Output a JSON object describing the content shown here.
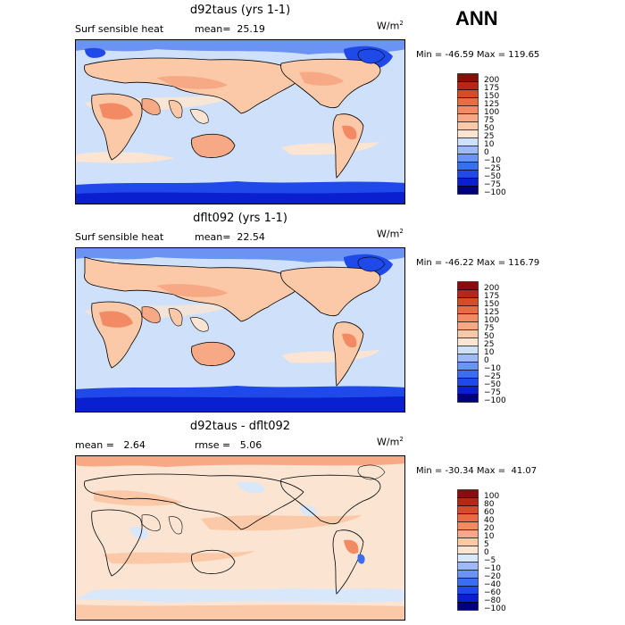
{
  "season": "ANN",
  "colors": {
    "abs_scale": [
      "#00007a",
      "#0a1fd0",
      "#1f49e8",
      "#3a6ef2",
      "#6a93f4",
      "#9cbaf5",
      "#cfe0fa",
      "#fbe5d2",
      "#fbc8a8",
      "#f7a986",
      "#f28b64",
      "#ea6a43",
      "#d94a2b",
      "#b8261a",
      "#8a0d0b"
    ],
    "diff_scale": [
      "#00007a",
      "#0a1fd0",
      "#1f49e8",
      "#3a6ef2",
      "#6a93f4",
      "#9cbaf5",
      "#d9e7fb",
      "#fbe5d2",
      "#fbc8a8",
      "#f7a986",
      "#f28b64",
      "#ea6a43",
      "#d94a2b",
      "#b8261a",
      "#8a0d0b"
    ]
  },
  "panels": [
    {
      "title": "d92taus (yrs 1-1)",
      "left_label": "Surf sensible heat",
      "stat_label": "mean=  25.19",
      "units_base": "W/m",
      "units_exp": "2",
      "minmax": "Min = -46.59 Max = 119.65",
      "colorbar_labels": [
        "200",
        "175",
        "150",
        "125",
        "100",
        "75",
        "50",
        "25",
        "10",
        "0",
        "−10",
        "−25",
        "−50",
        "−75",
        "−100"
      ]
    },
    {
      "title": "dflt092 (yrs 1-1)",
      "left_label": "Surf sensible heat",
      "stat_label": "mean=  22.54",
      "units_base": "W/m",
      "units_exp": "2",
      "minmax": "Min = -46.22 Max = 116.79",
      "colorbar_labels": [
        "200",
        "175",
        "150",
        "125",
        "100",
        "75",
        "50",
        "25",
        "10",
        "0",
        "−10",
        "−25",
        "−50",
        "−75",
        "−100"
      ]
    },
    {
      "title": "d92taus - dflt092",
      "left_label": "mean =   2.64",
      "stat_label": "rmse =   5.06",
      "units_base": "W/m",
      "units_exp": "2",
      "minmax": "Min = -30.34 Max =  41.07",
      "colorbar_labels": [
        "100",
        "80",
        "60",
        "40",
        "20",
        "10",
        "5",
        "0",
        "−5",
        "−10",
        "−20",
        "−40",
        "−60",
        "−80",
        "−100"
      ]
    }
  ]
}
